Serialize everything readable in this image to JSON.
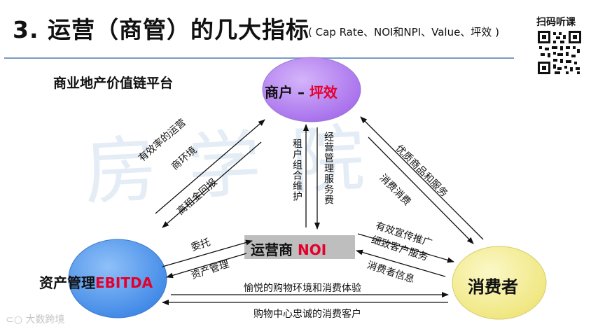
{
  "header": {
    "title": "3. 运营（商管）的几大指标",
    "subtitle": "( Cap Rate、NOI和NPI、Value、坪效 )",
    "qr_label": "扫码听课"
  },
  "diagram": {
    "platform_title": "商业地产价值链平台",
    "watermark": "房学院",
    "nodes": {
      "tenant": {
        "label": "商户 – ",
        "metric": "坪效"
      },
      "asset": {
        "label": "资产管理",
        "metric": "EBITDA"
      },
      "operator": {
        "label": "运营商 ",
        "metric": "NOI"
      },
      "consumer": {
        "label": "消费者"
      }
    },
    "edges": {
      "asset_to_tenant_a": "有效率的运营",
      "asset_to_tenant_b": "商环境",
      "tenant_to_asset": "高租金回报",
      "tenant_mix": "租户组合维护",
      "mgmt_fee": "经营管理服务费",
      "quality_goods": "优质商品和服务",
      "consumption": "消费消费",
      "entrust": "委托",
      "asset_mgmt": "资产管理",
      "promo_a": "有效宣传推广",
      "promo_b": "细致客户服务",
      "consumer_info": "消费者信息",
      "pleasant_env": "愉悦的购物环境和消费体验",
      "loyal_customers": "购物中心忠诚的消费客户"
    }
  },
  "footer": {
    "logo_text": "大数跨境"
  },
  "colors": {
    "tenant_fill": "#b27cf2",
    "asset_fill": "#5b9ef0",
    "consumer_fill": "#f7f3a0",
    "operator_fill": "#bcbcbc",
    "metric_red": "#e4002b",
    "rule": "#7a9cc7"
  }
}
